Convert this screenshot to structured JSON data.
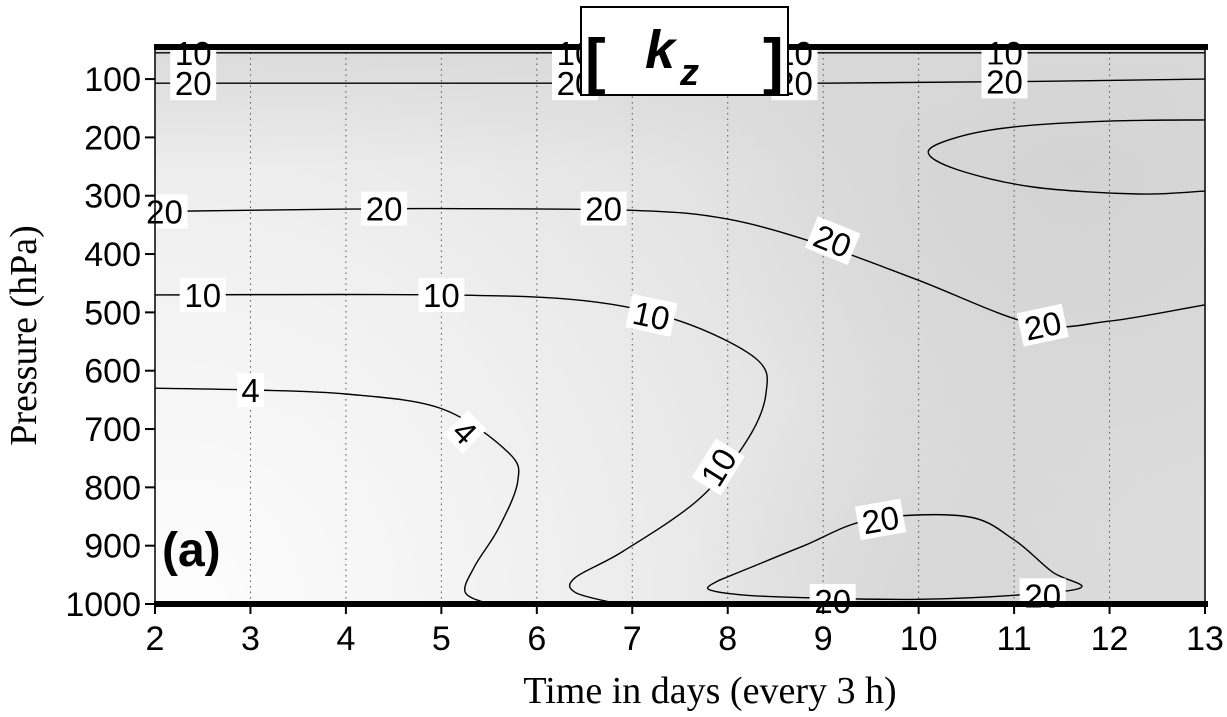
{
  "chart_data": {
    "type": "contour",
    "title": {
      "bracket_open": "[",
      "variable": "k",
      "subscript": "z",
      "bracket_close": "]"
    },
    "panel_label": "(a)",
    "xlabel": "Time in days (every 3 h)",
    "ylabel": "Pressure (hPa)",
    "x_ticks": [
      "2",
      "3",
      "4",
      "5",
      "6",
      "7",
      "8",
      "9",
      "10",
      "11",
      "12",
      "13"
    ],
    "y_ticks": [
      "100",
      "200",
      "300",
      "400",
      "500",
      "600",
      "700",
      "800",
      "900",
      "1000"
    ],
    "xlim": [
      2,
      13
    ],
    "ylim": [
      1000,
      45
    ],
    "y_reversed": true,
    "grid": "dotted vertical lines at each day",
    "shading": "light-to-darker grey fill, lightest in the lower left (days 2–6, 600–1000 hPa), darkest near 200–300 hPa after day 10",
    "contours": [
      {
        "level": 10,
        "points": [
          [
            2,
            55
          ],
          [
            13,
            55
          ]
        ]
      },
      {
        "level": 20,
        "points": [
          [
            2,
            107
          ],
          [
            6,
            107
          ],
          [
            9,
            107
          ],
          [
            11.2,
            104
          ],
          [
            13,
            100
          ]
        ]
      },
      {
        "level": 20,
        "points": [
          [
            13,
            170
          ],
          [
            12,
            172
          ],
          [
            11,
            182
          ],
          [
            10.4,
            200
          ],
          [
            10.1,
            225
          ],
          [
            10.4,
            255
          ],
          [
            11.2,
            285
          ],
          [
            12.3,
            297
          ],
          [
            13,
            292
          ]
        ]
      },
      {
        "level": 20,
        "points": [
          [
            2,
            327
          ],
          [
            4,
            323
          ],
          [
            5,
            322
          ],
          [
            7,
            325
          ],
          [
            8,
            340
          ],
          [
            9,
            385
          ],
          [
            10,
            445
          ],
          [
            11.2,
            520
          ],
          [
            12,
            515
          ],
          [
            13,
            487
          ]
        ]
      },
      {
        "level": 10,
        "points": [
          [
            2,
            470
          ],
          [
            5,
            470
          ],
          [
            6.5,
            480
          ],
          [
            7.5,
            515
          ],
          [
            8.3,
            580
          ],
          [
            8.4,
            640
          ],
          [
            8.2,
            720
          ],
          [
            7.7,
            820
          ],
          [
            6.9,
            910
          ],
          [
            6.4,
            955
          ],
          [
            6.4,
            980
          ],
          [
            6.8,
            998
          ]
        ]
      },
      {
        "level": 4,
        "points": [
          [
            2,
            630
          ],
          [
            3,
            633
          ],
          [
            4,
            640
          ],
          [
            5,
            665
          ],
          [
            5.7,
            740
          ],
          [
            5.8,
            790
          ],
          [
            5.6,
            870
          ],
          [
            5.35,
            935
          ],
          [
            5.25,
            980
          ],
          [
            5.5,
            1000
          ]
        ]
      },
      {
        "level": 20,
        "points": [
          [
            7.9,
            960
          ],
          [
            7.8,
            975
          ],
          [
            8.2,
            985
          ],
          [
            9,
            990
          ],
          [
            10,
            992
          ],
          [
            11,
            985
          ],
          [
            11.7,
            972
          ],
          [
            11.4,
            945
          ],
          [
            11,
            890
          ],
          [
            10.5,
            850
          ],
          [
            9.5,
            855
          ],
          [
            8.8,
            900
          ],
          [
            8.2,
            940
          ],
          [
            7.9,
            960
          ]
        ]
      },
      {
        "level": 20,
        "points": [
          [
            8,
            997
          ],
          [
            10,
            997
          ],
          [
            11.5,
            998
          ],
          [
            13,
            1000
          ]
        ]
      }
    ],
    "contour_labels": [
      {
        "text": "10",
        "x": 2.4,
        "y": 55,
        "angle": 0
      },
      {
        "text": "10",
        "x": 6.4,
        "y": 55,
        "angle": 0
      },
      {
        "text": "10",
        "x": 8.7,
        "y": 55,
        "angle": 0
      },
      {
        "text": "10",
        "x": 10.9,
        "y": 55,
        "angle": 0
      },
      {
        "text": "20",
        "x": 2.4,
        "y": 107,
        "angle": 0
      },
      {
        "text": "20",
        "x": 6.4,
        "y": 107,
        "angle": 0
      },
      {
        "text": "20",
        "x": 8.7,
        "y": 107,
        "angle": 0
      },
      {
        "text": "20",
        "x": 10.9,
        "y": 104,
        "angle": 0
      },
      {
        "text": "20",
        "x": 2.1,
        "y": 327,
        "angle": 0
      },
      {
        "text": "20",
        "x": 4.4,
        "y": 322,
        "angle": 0
      },
      {
        "text": "20",
        "x": 6.7,
        "y": 322,
        "angle": 0
      },
      {
        "text": "20",
        "x": 9.1,
        "y": 377,
        "angle": 22
      },
      {
        "text": "20",
        "x": 11.3,
        "y": 522,
        "angle": -12
      },
      {
        "text": "10",
        "x": 2.5,
        "y": 470,
        "angle": 0
      },
      {
        "text": "10",
        "x": 5.0,
        "y": 470,
        "angle": 0
      },
      {
        "text": "10",
        "x": 7.2,
        "y": 505,
        "angle": 12
      },
      {
        "text": "10",
        "x": 7.9,
        "y": 765,
        "angle": -58
      },
      {
        "text": "4",
        "x": 3.0,
        "y": 633,
        "angle": 0
      },
      {
        "text": "4",
        "x": 5.25,
        "y": 705,
        "angle": 45
      },
      {
        "text": "20",
        "x": 9.6,
        "y": 855,
        "angle": -10
      },
      {
        "text": "20",
        "x": 9.1,
        "y": 995,
        "angle": 0
      },
      {
        "text": "20",
        "x": 11.3,
        "y": 985,
        "angle": 0
      }
    ]
  },
  "colors": {
    "axis": "#000000",
    "contour": "#000000",
    "shade_light": "#fbfbfb",
    "shade_mid": "#ececec",
    "shade_dark": "#d9d9d9",
    "grid": "#555555"
  }
}
